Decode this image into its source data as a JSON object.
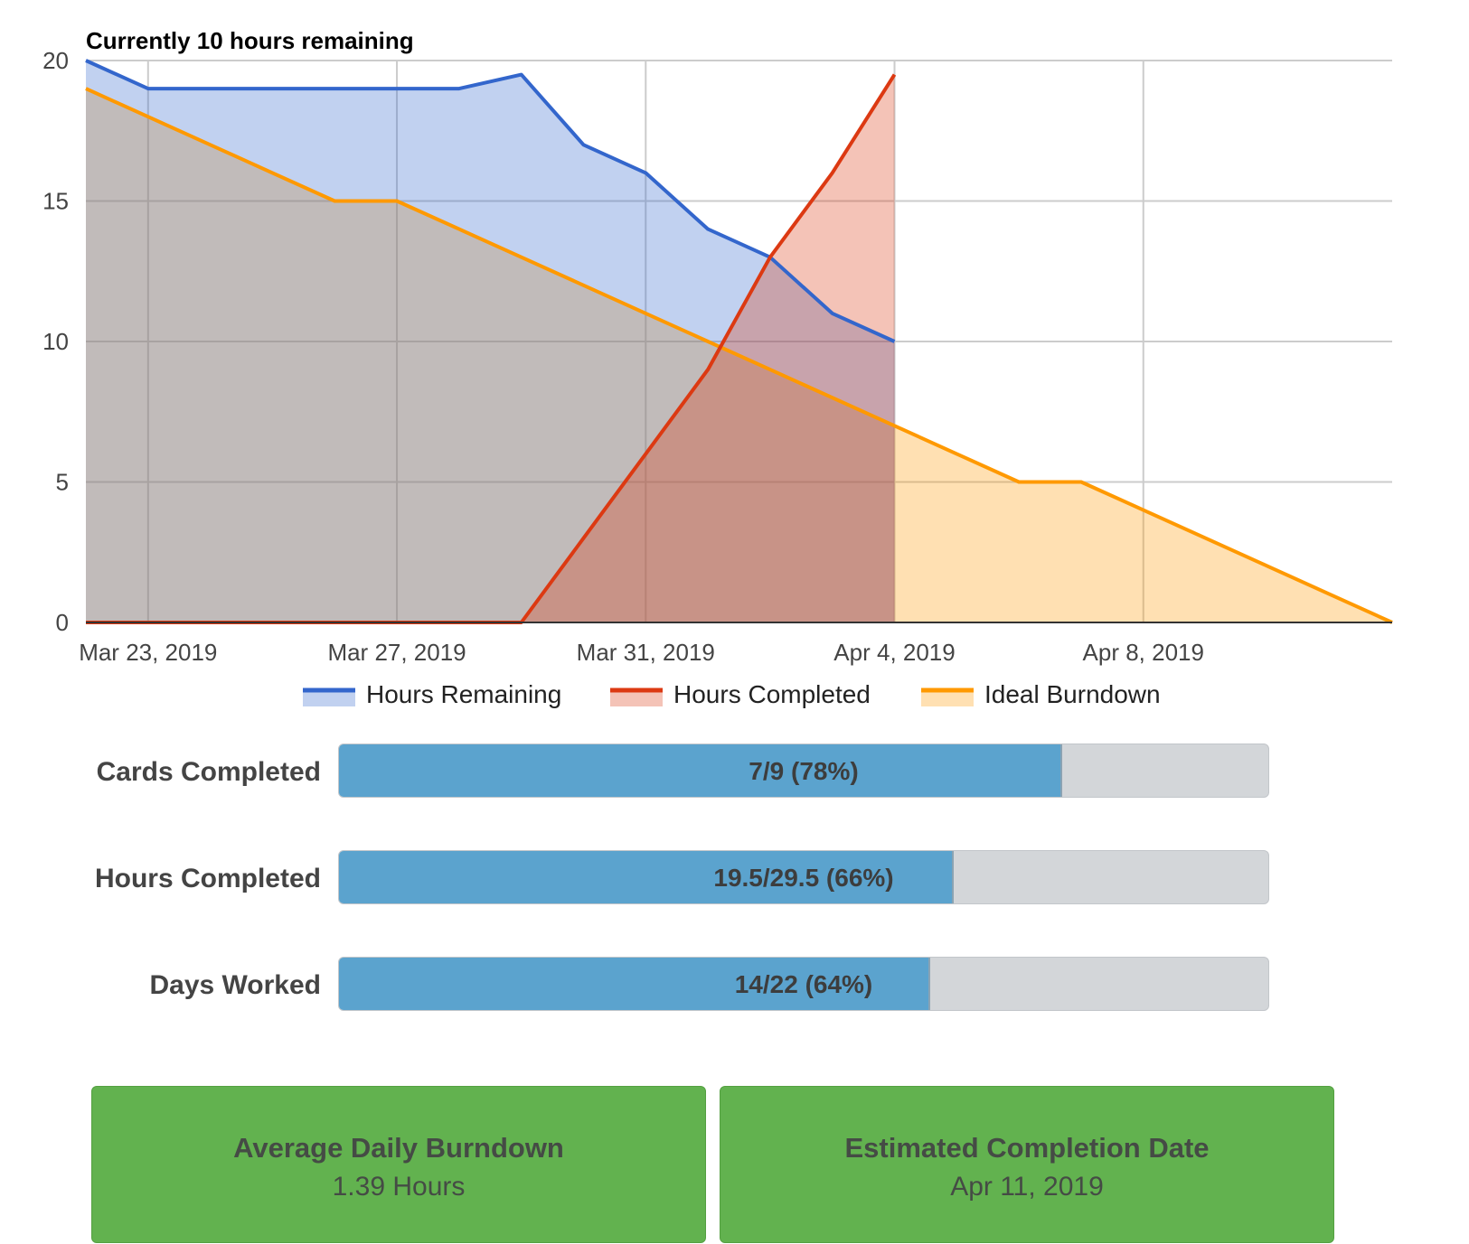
{
  "chart_data": {
    "type": "area",
    "title": "Currently 10 hours remaining",
    "xlabel": "",
    "ylabel": "",
    "ylim": [
      0,
      20
    ],
    "yticks": [
      "0",
      "5",
      "10",
      "15",
      "20"
    ],
    "xlim": [
      "2019-03-22",
      "2019-04-12"
    ],
    "xticks": [
      "Mar 23, 2019",
      "Mar 27, 2019",
      "Mar 31, 2019",
      "Apr 4, 2019",
      "Apr 8, 2019"
    ],
    "grid": true,
    "legend_position": "bottom",
    "series": [
      {
        "name": "Hours Remaining",
        "color": "#3366cc",
        "x": [
          "2019-03-22",
          "2019-03-23",
          "2019-03-24",
          "2019-03-25",
          "2019-03-26",
          "2019-03-27",
          "2019-03-28",
          "2019-03-29",
          "2019-03-30",
          "2019-03-31",
          "2019-04-01",
          "2019-04-02",
          "2019-04-03",
          "2019-04-04"
        ],
        "values": [
          20,
          19,
          19,
          19,
          19,
          19,
          19,
          19.5,
          17,
          16,
          14,
          13,
          11,
          10
        ]
      },
      {
        "name": "Hours Completed",
        "color": "#dc3912",
        "x": [
          "2019-03-22",
          "2019-03-23",
          "2019-03-24",
          "2019-03-25",
          "2019-03-26",
          "2019-03-27",
          "2019-03-28",
          "2019-03-29",
          "2019-03-30",
          "2019-03-31",
          "2019-04-01",
          "2019-04-02",
          "2019-04-03",
          "2019-04-04"
        ],
        "values": [
          0,
          0,
          0,
          0,
          0,
          0,
          0,
          0,
          3,
          6,
          9,
          13,
          16,
          19.5
        ]
      },
      {
        "name": "Ideal Burndown",
        "color": "#ff9900",
        "x": [
          "2019-03-22",
          "2019-03-23",
          "2019-03-24",
          "2019-03-25",
          "2019-03-26",
          "2019-03-27",
          "2019-03-28",
          "2019-03-29",
          "2019-03-30",
          "2019-03-31",
          "2019-04-01",
          "2019-04-02",
          "2019-04-03",
          "2019-04-04",
          "2019-04-05",
          "2019-04-06",
          "2019-04-07",
          "2019-04-08",
          "2019-04-09",
          "2019-04-10",
          "2019-04-11",
          "2019-04-12"
        ],
        "values": [
          19,
          18,
          17,
          16,
          15,
          15,
          14,
          13,
          12,
          11,
          10,
          9,
          8,
          7,
          6,
          5,
          5,
          4,
          3,
          2,
          1,
          0
        ]
      }
    ]
  },
  "stats": [
    {
      "label": "Cards Completed",
      "text": "7/9 (78%)",
      "fraction": 0.7778
    },
    {
      "label": "Hours Completed",
      "text": "19.5/29.5 (66%)",
      "fraction": 0.661
    },
    {
      "label": "Days Worked",
      "text": "14/22 (64%)",
      "fraction": 0.6364
    }
  ],
  "cards": [
    {
      "title": "Average Daily Burndown",
      "value": "1.39 Hours",
      "color": "#62b24f"
    },
    {
      "title": "Estimated Completion Date",
      "value": "Apr 11, 2019",
      "color": "#62b24f"
    }
  ]
}
